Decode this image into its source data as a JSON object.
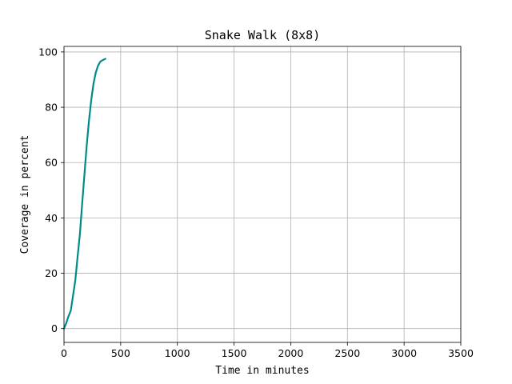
{
  "chart_data": {
    "type": "line",
    "title": "Snake Walk (8x8)",
    "xlabel": "Time in minutes",
    "ylabel": "Coverage in percent",
    "xlim": [
      0,
      3500
    ],
    "ylim": [
      -5,
      102
    ],
    "xticks": [
      0,
      500,
      1000,
      1500,
      2000,
      2500,
      3000,
      3500
    ],
    "yticks": [
      0,
      20,
      40,
      60,
      80,
      100
    ],
    "grid": true,
    "series": [
      {
        "color": "#008b8b",
        "x": [
          0,
          20,
          40,
          60,
          80,
          100,
          120,
          140,
          160,
          180,
          200,
          220,
          240,
          260,
          280,
          300,
          320,
          340,
          365
        ],
        "y": [
          0,
          2,
          4.5,
          6.5,
          12,
          17.5,
          26,
          34,
          45,
          55.5,
          66,
          75,
          82.5,
          88.5,
          92.5,
          95,
          96.5,
          97,
          97.5
        ]
      }
    ]
  }
}
